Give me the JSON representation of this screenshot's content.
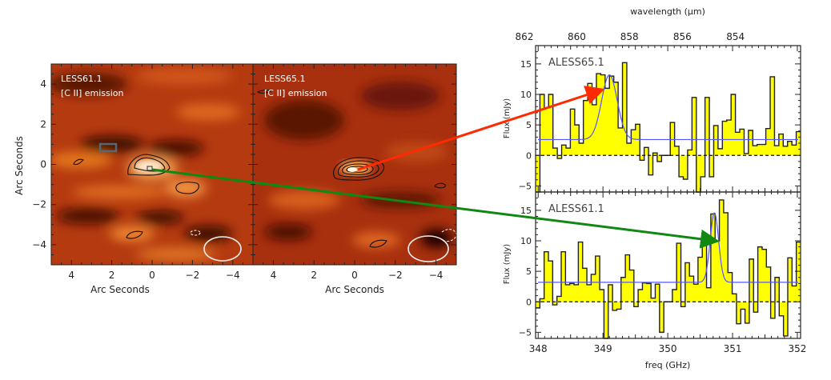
{
  "maps": [
    {
      "title": "LESS61.1",
      "subtitle": "[C II] emission",
      "xlabel": "Arc Seconds",
      "ylabel": "Arc Seconds",
      "xticks": [
        4,
        2,
        0,
        -2,
        -4
      ],
      "yticks": [
        4,
        2,
        0,
        -2,
        -4
      ],
      "xlim": [
        5,
        -5
      ],
      "ylim": [
        -5,
        5
      ]
    },
    {
      "title": "LESS65.1",
      "subtitle": "[C II] emission",
      "xlabel": "Arc Seconds",
      "xticks": [
        4,
        2,
        0,
        -2,
        -4
      ],
      "xlim": [
        5,
        -5
      ],
      "ylim": [
        -5,
        5
      ]
    }
  ],
  "chart_data": [
    {
      "type": "bar",
      "style": "histogram-step",
      "label": "ALESS65.1",
      "xlabel": "",
      "ylabel": "Flux (mJy)",
      "top_axis_label": "wavelength (μm)",
      "top_ticks": [
        862,
        860,
        858,
        856,
        854
      ],
      "xlim": [
        347.96,
        352.05
      ],
      "ylim": [
        -6,
        18
      ],
      "yticks": [
        -5,
        0,
        5,
        10,
        15
      ],
      "fill_color": "#ffff00",
      "fit_color": "#5555ff",
      "values": [
        -8,
        10,
        7.8,
        10,
        1.2,
        -0.5,
        1.7,
        1.2,
        7.6,
        5,
        2,
        9,
        11.8,
        8.3,
        13.4,
        13.2,
        11,
        13,
        12,
        4.5,
        15.2,
        2,
        4.2,
        5.1,
        -0.8,
        1.3,
        -3.2,
        0.4,
        -1,
        0,
        0,
        5.4,
        1.5,
        -3.5,
        -3.9,
        0.9,
        9.5,
        -8,
        -3.5,
        9.5,
        -3.5,
        4.9,
        1.1,
        5.6,
        5.8,
        10,
        3.8,
        4.3,
        0.3,
        4.1,
        1.6,
        1.8,
        1.8,
        4.4,
        12.9,
        1.6,
        3.5,
        1.5,
        2.3,
        1.7,
        3.9
      ],
      "fit": {
        "continuum": 2.6,
        "peak": 13.2,
        "center_ghz": 349.1,
        "sigma_ghz": 0.12
      }
    },
    {
      "type": "bar",
      "style": "histogram-step",
      "label": "ALESS61.1",
      "xlabel": "freq (GHz)",
      "ylabel": "Flux (mJy)",
      "xticks": [
        348,
        349,
        350,
        351,
        352
      ],
      "xlim": [
        347.96,
        352.05
      ],
      "ylim": [
        -6,
        18
      ],
      "yticks": [
        -5,
        0,
        5,
        10,
        15
      ],
      "fill_color": "#ffff00",
      "fit_color": "#5555ff",
      "values": [
        -1,
        0.5,
        8.2,
        6.7,
        -0.5,
        0.9,
        8.2,
        2.8,
        3.0,
        2.8,
        9.8,
        5.5,
        2.8,
        4.5,
        7.5,
        2,
        -6,
        2.8,
        -1.4,
        -1.2,
        4,
        7.7,
        5.2,
        -0.8,
        2,
        3.1,
        3,
        0.6,
        2.9,
        -5,
        0,
        0,
        2,
        9.6,
        -0.8,
        6.4,
        4.2,
        2.9,
        7.3,
        9.7,
        2.3,
        14.4,
        10,
        16.7,
        14.6,
        4.8,
        1.3,
        -3.6,
        -1.2,
        -3.5,
        7,
        -1.7,
        9,
        8.6,
        5.7,
        -2.7,
        4,
        -2.3,
        -5.6,
        7.2,
        2.6,
        9.8
      ],
      "fit": {
        "continuum": 3.2,
        "peak": 14.6,
        "center_ghz": 350.72,
        "sigma_ghz": 0.065
      }
    }
  ],
  "arrows": [
    {
      "from": "LESS65.1",
      "to": "ALESS65.1",
      "color": "#ff2a00"
    },
    {
      "from": "LESS61.1",
      "to": "ALESS61.1",
      "color": "#118811"
    }
  ]
}
